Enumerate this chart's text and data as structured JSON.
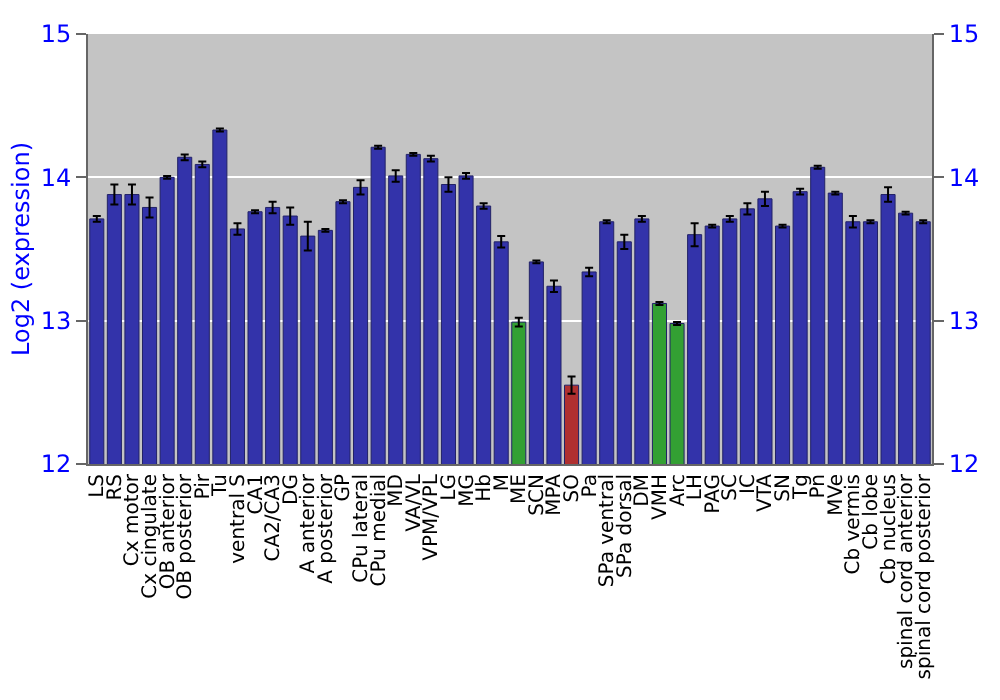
{
  "chart_data": {
    "type": "bar",
    "ylabel": "Log2 (expression)",
    "categories": [
      "LS",
      "RS",
      "Cx motor",
      "Cx cingulate",
      "OB anterior",
      "OB posterior",
      "Pir",
      "Tu",
      "ventral S",
      "CA1",
      "CA2/CA3",
      "DG",
      "A anterior",
      "A posterior",
      "GP",
      "CPu lateral",
      "CPu medial",
      "MD",
      "VA/VL",
      "VPM/VPL",
      "LG",
      "MG",
      "Hb",
      "M",
      "ME",
      "SCN",
      "MPA",
      "SO",
      "Pa",
      "SPa ventral",
      "SPa dorsal",
      "DM",
      "VMH",
      "Arc",
      "LH",
      "PAG",
      "SC",
      "IC",
      "VTA",
      "SN",
      "Tg",
      "Pn",
      "MVe",
      "Cb vermis",
      "Cb lobe",
      "Cb nucleus",
      "spinal cord anterior",
      "spinal cord posterior"
    ],
    "values": [
      13.71,
      13.88,
      13.88,
      13.79,
      14.0,
      14.14,
      14.09,
      14.33,
      13.64,
      13.76,
      13.79,
      13.73,
      13.59,
      13.63,
      13.83,
      13.93,
      14.21,
      14.01,
      14.16,
      14.13,
      13.95,
      14.01,
      13.8,
      13.55,
      12.99,
      13.41,
      13.24,
      12.55,
      13.34,
      13.69,
      13.55,
      13.71,
      13.12,
      12.98,
      13.6,
      13.66,
      13.71,
      13.78,
      13.85,
      13.66,
      13.9,
      14.07,
      13.89,
      13.69,
      13.69,
      13.88,
      13.75,
      13.69
    ],
    "errors": [
      0.02,
      0.07,
      0.07,
      0.07,
      0.01,
      0.02,
      0.02,
      0.01,
      0.04,
      0.01,
      0.04,
      0.06,
      0.1,
      0.01,
      0.01,
      0.05,
      0.01,
      0.04,
      0.01,
      0.02,
      0.05,
      0.02,
      0.02,
      0.04,
      0.03,
      0.01,
      0.04,
      0.06,
      0.03,
      0.01,
      0.05,
      0.02,
      0.01,
      0.01,
      0.08,
      0.01,
      0.02,
      0.04,
      0.05,
      0.01,
      0.02,
      0.01,
      0.01,
      0.04,
      0.01,
      0.05,
      0.01,
      0.01
    ],
    "colors": [
      "#3333aa",
      "#3333aa",
      "#3333aa",
      "#3333aa",
      "#3333aa",
      "#3333aa",
      "#3333aa",
      "#3333aa",
      "#3333aa",
      "#3333aa",
      "#3333aa",
      "#3333aa",
      "#3333aa",
      "#3333aa",
      "#3333aa",
      "#3333aa",
      "#3333aa",
      "#3333aa",
      "#3333aa",
      "#3333aa",
      "#3333aa",
      "#3333aa",
      "#3333aa",
      "#3333aa",
      "#33a033",
      "#3333aa",
      "#3333aa",
      "#b03030",
      "#3333aa",
      "#3333aa",
      "#3333aa",
      "#3333aa",
      "#33a033",
      "#33a033",
      "#3333aa",
      "#3333aa",
      "#3333aa",
      "#3333aa",
      "#3333aa",
      "#3333aa",
      "#3333aa",
      "#3333aa",
      "#3333aa",
      "#3333aa",
      "#3333aa",
      "#3333aa",
      "#3333aa",
      "#3333aa"
    ],
    "ylim": [
      12,
      15
    ],
    "yticks": [
      12,
      13,
      14,
      15
    ],
    "y2lim": [
      12,
      15
    ],
    "y2ticks": [
      12,
      13,
      14,
      15
    ],
    "grid": "y",
    "legend": false
  }
}
